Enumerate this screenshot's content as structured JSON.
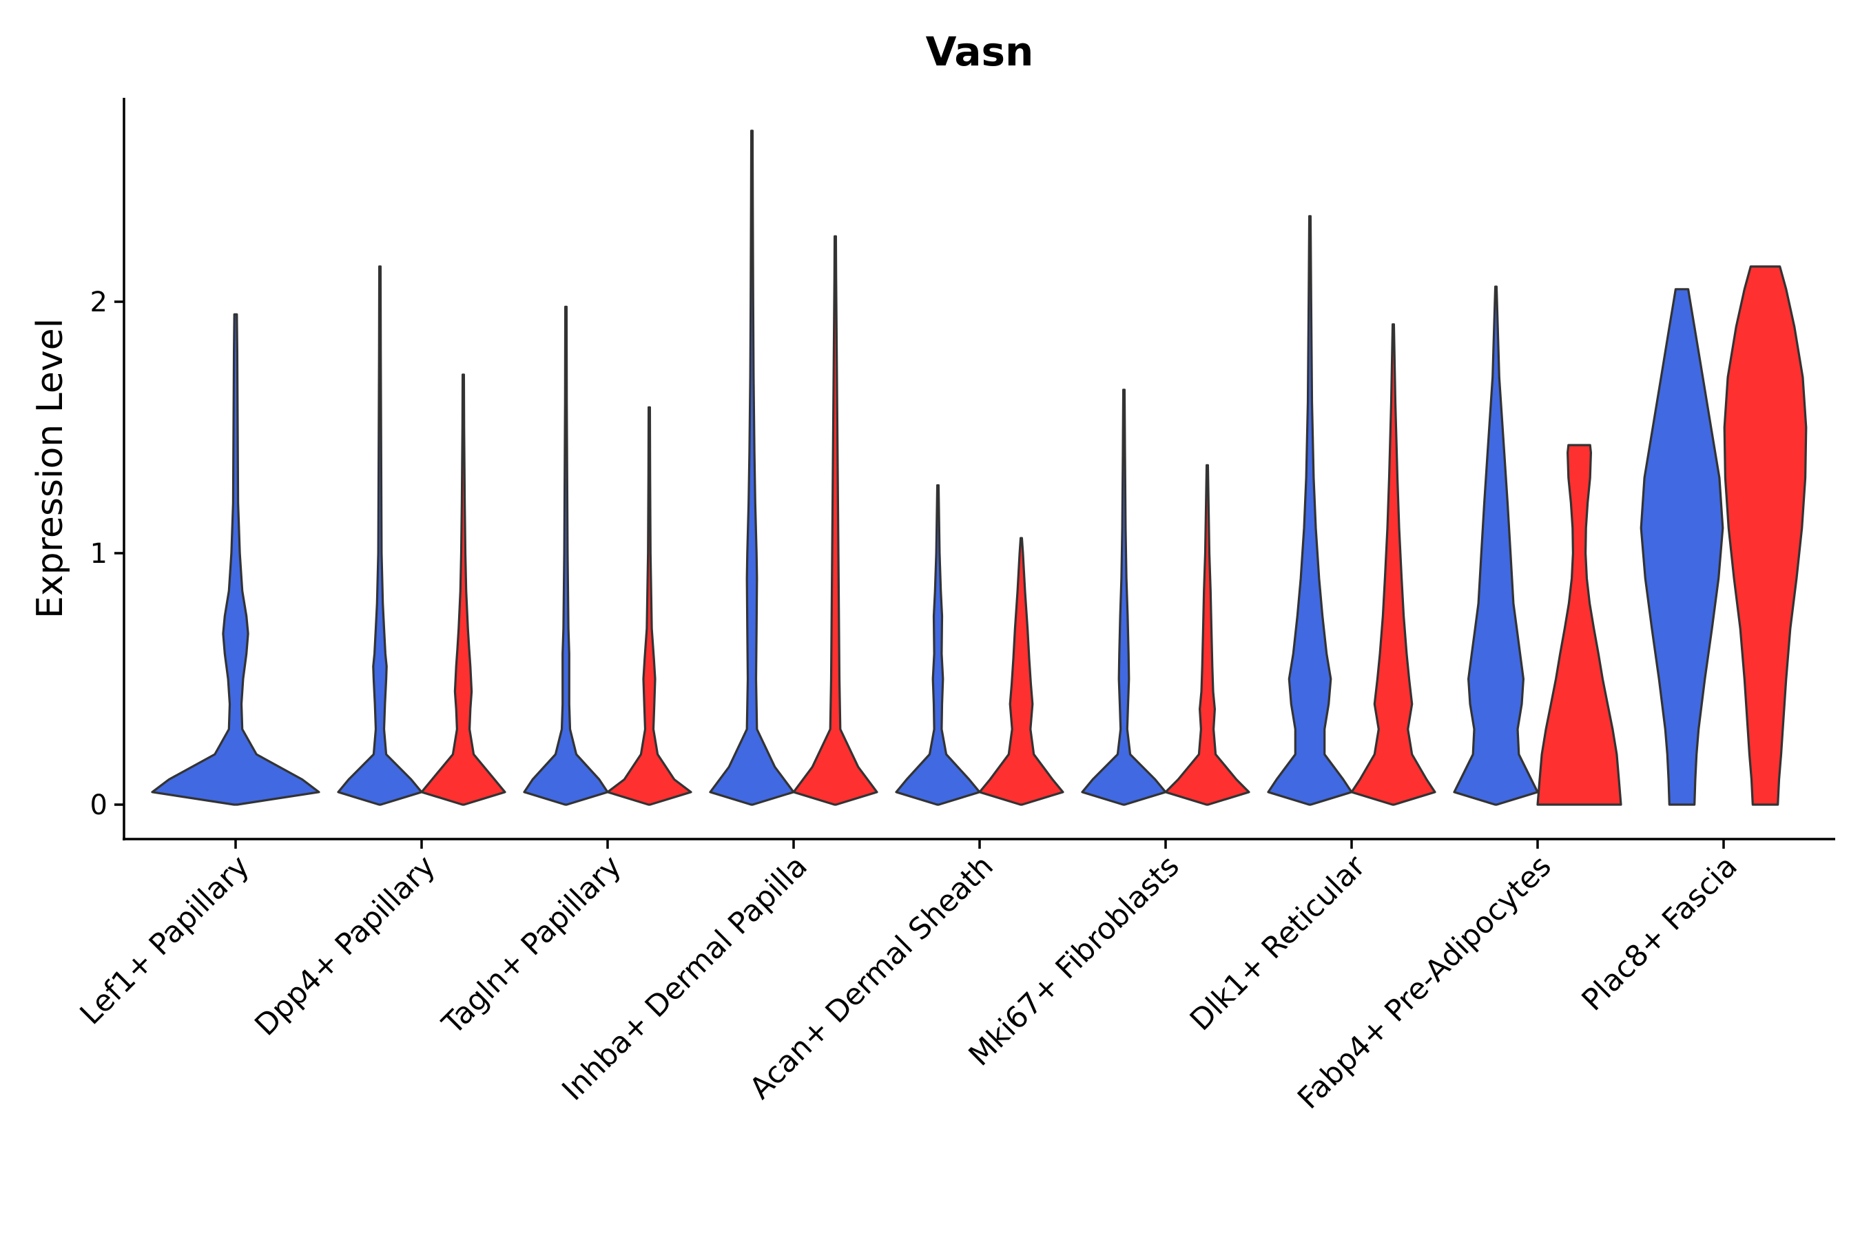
{
  "chart_data": {
    "type": "violin",
    "title": "Vasn",
    "xlabel": "",
    "ylabel": "Expression Level",
    "ylim": [
      -0.14,
      2.8
    ],
    "yticks": [
      0,
      1,
      2
    ],
    "colors": {
      "group1": "#4169E1",
      "group2": "#FF3030",
      "outline": "#333333"
    },
    "categories": [
      "Lef1+ Papillary",
      "Dpp4+ Papillary",
      "Tagln+ Papillary",
      "Inhba+ Dermal Papilla",
      "Acan+ Dermal Sheath",
      "Mki67+ Fibroblasts",
      "Dlk1+ Reticular",
      "Fabp4+ Pre-Adipocytes",
      "Plac8+ Fascia"
    ],
    "violins": [
      {
        "category": 0,
        "side": "single",
        "group": "group1",
        "max": 1.95,
        "density": [
          [
            0,
            0.02
          ],
          [
            0.05,
            1.0
          ],
          [
            0.1,
            0.8
          ],
          [
            0.2,
            0.25
          ],
          [
            0.3,
            0.08
          ],
          [
            0.4,
            0.07
          ],
          [
            0.5,
            0.09
          ],
          [
            0.6,
            0.13
          ],
          [
            0.68,
            0.15
          ],
          [
            0.75,
            0.13
          ],
          [
            0.85,
            0.08
          ],
          [
            1.0,
            0.05
          ],
          [
            1.2,
            0.03
          ],
          [
            1.5,
            0.025
          ],
          [
            1.8,
            0.02
          ],
          [
            1.95,
            0.015
          ]
        ]
      },
      {
        "category": 1,
        "side": "left",
        "group": "group1",
        "max": 2.14,
        "density": [
          [
            0,
            0.02
          ],
          [
            0.05,
            1.0
          ],
          [
            0.1,
            0.75
          ],
          [
            0.2,
            0.15
          ],
          [
            0.3,
            0.1
          ],
          [
            0.4,
            0.12
          ],
          [
            0.5,
            0.15
          ],
          [
            0.55,
            0.16
          ],
          [
            0.6,
            0.13
          ],
          [
            0.7,
            0.1
          ],
          [
            0.8,
            0.07
          ],
          [
            1.0,
            0.04
          ],
          [
            1.4,
            0.03
          ],
          [
            1.8,
            0.02
          ],
          [
            2.14,
            0.015
          ]
        ]
      },
      {
        "category": 1,
        "side": "right",
        "group": "group2",
        "max": 1.71,
        "density": [
          [
            0,
            0.02
          ],
          [
            0.05,
            1.0
          ],
          [
            0.1,
            0.75
          ],
          [
            0.2,
            0.25
          ],
          [
            0.3,
            0.15
          ],
          [
            0.38,
            0.17
          ],
          [
            0.45,
            0.2
          ],
          [
            0.55,
            0.17
          ],
          [
            0.62,
            0.14
          ],
          [
            0.7,
            0.11
          ],
          [
            0.85,
            0.07
          ],
          [
            1.0,
            0.05
          ],
          [
            1.2,
            0.035
          ],
          [
            1.5,
            0.02
          ],
          [
            1.71,
            0.015
          ]
        ]
      },
      {
        "category": 2,
        "side": "left",
        "group": "group1",
        "max": 1.98,
        "density": [
          [
            0,
            0.02
          ],
          [
            0.05,
            1.0
          ],
          [
            0.1,
            0.8
          ],
          [
            0.2,
            0.25
          ],
          [
            0.3,
            0.1
          ],
          [
            0.4,
            0.08
          ],
          [
            0.5,
            0.08
          ],
          [
            0.6,
            0.08
          ],
          [
            0.7,
            0.06
          ],
          [
            0.85,
            0.05
          ],
          [
            1.0,
            0.04
          ],
          [
            1.3,
            0.03
          ],
          [
            1.6,
            0.02
          ],
          [
            1.98,
            0.015
          ]
        ]
      },
      {
        "category": 2,
        "side": "right",
        "group": "group2",
        "max": 1.58,
        "density": [
          [
            0,
            0.02
          ],
          [
            0.05,
            1.0
          ],
          [
            0.1,
            0.6
          ],
          [
            0.2,
            0.2
          ],
          [
            0.3,
            0.1
          ],
          [
            0.4,
            0.12
          ],
          [
            0.5,
            0.14
          ],
          [
            0.58,
            0.11
          ],
          [
            0.7,
            0.06
          ],
          [
            0.9,
            0.04
          ],
          [
            1.0,
            0.03
          ],
          [
            1.3,
            0.02
          ],
          [
            1.58,
            0.015
          ]
        ]
      },
      {
        "category": 3,
        "side": "left",
        "group": "group1",
        "max": 2.68,
        "density": [
          [
            0,
            0.02
          ],
          [
            0.05,
            1.0
          ],
          [
            0.15,
            0.55
          ],
          [
            0.3,
            0.12
          ],
          [
            0.5,
            0.1
          ],
          [
            0.7,
            0.11
          ],
          [
            0.9,
            0.12
          ],
          [
            1.0,
            0.11
          ],
          [
            1.2,
            0.08
          ],
          [
            1.4,
            0.06
          ],
          [
            1.7,
            0.04
          ],
          [
            2.0,
            0.03
          ],
          [
            2.4,
            0.02
          ],
          [
            2.68,
            0.015
          ]
        ]
      },
      {
        "category": 3,
        "side": "right",
        "group": "group2",
        "max": 2.26,
        "density": [
          [
            0,
            0.02
          ],
          [
            0.05,
            1.0
          ],
          [
            0.15,
            0.55
          ],
          [
            0.3,
            0.12
          ],
          [
            0.5,
            0.1
          ],
          [
            0.7,
            0.09
          ],
          [
            0.9,
            0.08
          ],
          [
            1.1,
            0.07
          ],
          [
            1.3,
            0.06
          ],
          [
            1.5,
            0.05
          ],
          [
            1.8,
            0.035
          ],
          [
            2.1,
            0.02
          ],
          [
            2.26,
            0.015
          ]
        ]
      },
      {
        "category": 4,
        "side": "left",
        "group": "group1",
        "max": 1.27,
        "density": [
          [
            0,
            0.02
          ],
          [
            0.05,
            1.0
          ],
          [
            0.1,
            0.75
          ],
          [
            0.2,
            0.2
          ],
          [
            0.3,
            0.09
          ],
          [
            0.4,
            0.1
          ],
          [
            0.5,
            0.12
          ],
          [
            0.6,
            0.09
          ],
          [
            0.75,
            0.1
          ],
          [
            0.85,
            0.07
          ],
          [
            1.0,
            0.04
          ],
          [
            1.27,
            0.015
          ]
        ]
      },
      {
        "category": 4,
        "side": "right",
        "group": "group2",
        "max": 1.06,
        "density": [
          [
            0,
            0.02
          ],
          [
            0.05,
            1.0
          ],
          [
            0.1,
            0.75
          ],
          [
            0.2,
            0.3
          ],
          [
            0.3,
            0.22
          ],
          [
            0.4,
            0.27
          ],
          [
            0.48,
            0.23
          ],
          [
            0.58,
            0.19
          ],
          [
            0.7,
            0.15
          ],
          [
            0.85,
            0.09
          ],
          [
            1.0,
            0.04
          ],
          [
            1.06,
            0.015
          ]
        ]
      },
      {
        "category": 5,
        "side": "left",
        "group": "group1",
        "max": 1.65,
        "density": [
          [
            0,
            0.02
          ],
          [
            0.05,
            1.0
          ],
          [
            0.1,
            0.75
          ],
          [
            0.2,
            0.15
          ],
          [
            0.3,
            0.08
          ],
          [
            0.4,
            0.1
          ],
          [
            0.5,
            0.12
          ],
          [
            0.6,
            0.11
          ],
          [
            0.75,
            0.09
          ],
          [
            0.9,
            0.06
          ],
          [
            1.1,
            0.04
          ],
          [
            1.4,
            0.025
          ],
          [
            1.65,
            0.015
          ]
        ]
      },
      {
        "category": 5,
        "side": "right",
        "group": "group2",
        "max": 1.35,
        "density": [
          [
            0,
            0.02
          ],
          [
            0.05,
            1.0
          ],
          [
            0.1,
            0.7
          ],
          [
            0.2,
            0.2
          ],
          [
            0.3,
            0.15
          ],
          [
            0.38,
            0.18
          ],
          [
            0.45,
            0.14
          ],
          [
            0.55,
            0.12
          ],
          [
            0.7,
            0.1
          ],
          [
            0.85,
            0.08
          ],
          [
            1.0,
            0.05
          ],
          [
            1.2,
            0.03
          ],
          [
            1.35,
            0.015
          ]
        ]
      },
      {
        "category": 6,
        "side": "left",
        "group": "group1",
        "max": 2.34,
        "density": [
          [
            0,
            0.02
          ],
          [
            0.05,
            1.0
          ],
          [
            0.1,
            0.8
          ],
          [
            0.2,
            0.35
          ],
          [
            0.3,
            0.35
          ],
          [
            0.4,
            0.45
          ],
          [
            0.5,
            0.5
          ],
          [
            0.6,
            0.4
          ],
          [
            0.75,
            0.3
          ],
          [
            0.9,
            0.22
          ],
          [
            1.1,
            0.14
          ],
          [
            1.3,
            0.09
          ],
          [
            1.6,
            0.05
          ],
          [
            2.0,
            0.03
          ],
          [
            2.34,
            0.015
          ]
        ]
      },
      {
        "category": 6,
        "side": "right",
        "group": "group2",
        "max": 1.91,
        "density": [
          [
            0,
            0.02
          ],
          [
            0.05,
            1.0
          ],
          [
            0.1,
            0.8
          ],
          [
            0.2,
            0.45
          ],
          [
            0.3,
            0.35
          ],
          [
            0.4,
            0.45
          ],
          [
            0.5,
            0.38
          ],
          [
            0.6,
            0.32
          ],
          [
            0.75,
            0.25
          ],
          [
            0.9,
            0.2
          ],
          [
            1.1,
            0.14
          ],
          [
            1.3,
            0.1
          ],
          [
            1.6,
            0.05
          ],
          [
            1.91,
            0.015
          ]
        ]
      },
      {
        "category": 7,
        "side": "left",
        "group": "group1",
        "max": 2.06,
        "density": [
          [
            0,
            0.02
          ],
          [
            0.05,
            1.0
          ],
          [
            0.1,
            0.85
          ],
          [
            0.2,
            0.55
          ],
          [
            0.3,
            0.52
          ],
          [
            0.4,
            0.62
          ],
          [
            0.5,
            0.66
          ],
          [
            0.6,
            0.58
          ],
          [
            0.7,
            0.5
          ],
          [
            0.8,
            0.42
          ],
          [
            1.0,
            0.35
          ],
          [
            1.2,
            0.28
          ],
          [
            1.4,
            0.2
          ],
          [
            1.7,
            0.08
          ],
          [
            2.06,
            0.015
          ]
        ]
      },
      {
        "category": 7,
        "side": "right",
        "group": "group2",
        "max": 1.43,
        "density": [
          [
            0,
            1.0
          ],
          [
            0.1,
            0.95
          ],
          [
            0.2,
            0.9
          ],
          [
            0.3,
            0.8
          ],
          [
            0.4,
            0.68
          ],
          [
            0.5,
            0.56
          ],
          [
            0.6,
            0.46
          ],
          [
            0.7,
            0.35
          ],
          [
            0.8,
            0.25
          ],
          [
            0.9,
            0.18
          ],
          [
            1.0,
            0.15
          ],
          [
            1.1,
            0.16
          ],
          [
            1.2,
            0.2
          ],
          [
            1.3,
            0.26
          ],
          [
            1.4,
            0.28
          ],
          [
            1.43,
            0.26
          ]
        ]
      },
      {
        "category": 8,
        "side": "left",
        "group": "group1",
        "max": 2.05,
        "density": [
          [
            0,
            0.3
          ],
          [
            0.1,
            0.32
          ],
          [
            0.2,
            0.35
          ],
          [
            0.3,
            0.4
          ],
          [
            0.5,
            0.55
          ],
          [
            0.7,
            0.72
          ],
          [
            0.9,
            0.88
          ],
          [
            1.1,
            0.98
          ],
          [
            1.3,
            0.9
          ],
          [
            1.5,
            0.7
          ],
          [
            1.7,
            0.5
          ],
          [
            1.9,
            0.3
          ],
          [
            2.0,
            0.2
          ],
          [
            2.05,
            0.15
          ]
        ]
      },
      {
        "category": 8,
        "side": "right",
        "group": "group2",
        "max": 2.14,
        "density": [
          [
            0,
            0.3
          ],
          [
            0.1,
            0.33
          ],
          [
            0.2,
            0.38
          ],
          [
            0.3,
            0.42
          ],
          [
            0.5,
            0.5
          ],
          [
            0.7,
            0.6
          ],
          [
            0.9,
            0.75
          ],
          [
            1.1,
            0.88
          ],
          [
            1.3,
            0.96
          ],
          [
            1.5,
            0.98
          ],
          [
            1.7,
            0.9
          ],
          [
            1.9,
            0.7
          ],
          [
            2.05,
            0.5
          ],
          [
            2.14,
            0.35
          ]
        ]
      }
    ]
  }
}
